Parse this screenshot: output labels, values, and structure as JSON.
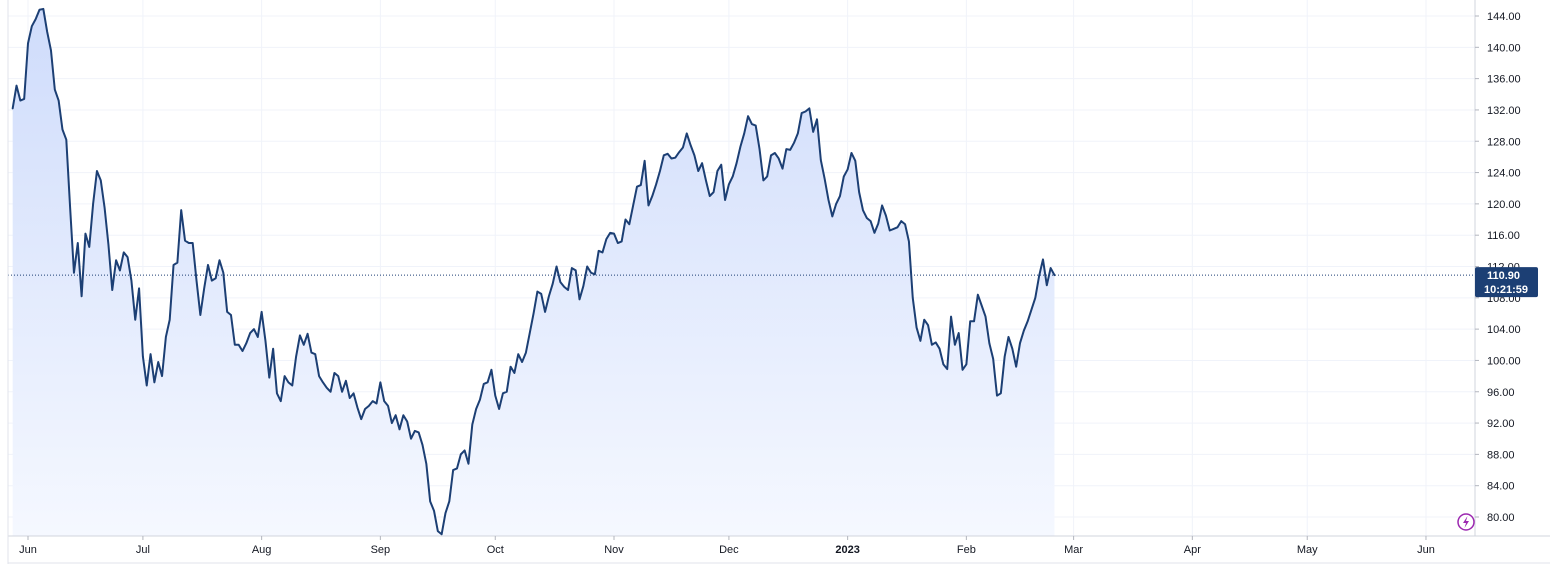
{
  "chart_data": {
    "type": "area",
    "title": "",
    "xlabel": "",
    "ylabel": "",
    "ylim": [
      77,
      146
    ],
    "grid": true,
    "y_ticks": [
      "144.00",
      "140.00",
      "136.00",
      "132.00",
      "128.00",
      "124.00",
      "120.00",
      "116.00",
      "112.00",
      "108.00",
      "104.00",
      "100.00",
      "96.00",
      "92.00",
      "88.00",
      "84.00",
      "80.00"
    ],
    "x_ticks": [
      {
        "label": "Jun",
        "day": 0,
        "bold": false
      },
      {
        "label": "Jul",
        "day": 30,
        "bold": false
      },
      {
        "label": "Aug",
        "day": 61,
        "bold": false
      },
      {
        "label": "Sep",
        "day": 92,
        "bold": false
      },
      {
        "label": "Oct",
        "day": 122,
        "bold": false
      },
      {
        "label": "Nov",
        "day": 153,
        "bold": false
      },
      {
        "label": "Dec",
        "day": 183,
        "bold": false
      },
      {
        "label": "2023",
        "day": 214,
        "bold": true
      },
      {
        "label": "Feb",
        "day": 245,
        "bold": false
      },
      {
        "label": "Mar",
        "day": 273,
        "bold": false
      },
      {
        "label": "Apr",
        "day": 304,
        "bold": false
      },
      {
        "label": "May",
        "day": 334,
        "bold": false
      },
      {
        "label": "Jun",
        "day": 365,
        "bold": false
      }
    ],
    "last_price": {
      "value": 110.9,
      "label": "110.90",
      "time": "10:21:59"
    },
    "colors": {
      "line": "#1c3f74",
      "fill_top": "#cfdcfb",
      "fill_bottom": "#f5f8ff",
      "badge": "#1c3f74",
      "grid": "#f0f3fa",
      "axis_text": "#131722",
      "lightning": "#9c27b0"
    },
    "series": [
      {
        "values": [
          [
            -4,
            132.2
          ],
          [
            -3,
            135.1
          ],
          [
            -2,
            133.2
          ],
          [
            -1,
            133.4
          ],
          [
            0,
            140.5
          ],
          [
            1,
            142.7
          ],
          [
            2,
            143.6
          ],
          [
            3,
            144.8
          ],
          [
            4,
            144.9
          ],
          [
            5,
            142.0
          ],
          [
            6,
            139.6
          ],
          [
            7,
            134.6
          ],
          [
            8,
            133.2
          ],
          [
            9,
            129.5
          ],
          [
            10,
            128.2
          ],
          [
            11,
            119.5
          ],
          [
            12,
            111.2
          ],
          [
            13,
            115.0
          ],
          [
            14,
            108.2
          ],
          [
            15,
            116.2
          ],
          [
            16,
            114.5
          ],
          [
            17,
            120.0
          ],
          [
            18,
            124.2
          ],
          [
            19,
            123.0
          ],
          [
            20,
            119.5
          ],
          [
            21,
            114.8
          ],
          [
            22,
            109.0
          ],
          [
            23,
            112.8
          ],
          [
            24,
            111.5
          ],
          [
            25,
            113.8
          ],
          [
            26,
            113.2
          ],
          [
            27,
            110.2
          ],
          [
            28,
            105.2
          ],
          [
            29,
            109.2
          ],
          [
            30,
            100.5
          ],
          [
            31,
            96.8
          ],
          [
            32,
            100.8
          ],
          [
            33,
            97.2
          ],
          [
            34,
            99.8
          ],
          [
            35,
            98.0
          ],
          [
            36,
            103.0
          ],
          [
            37,
            105.2
          ],
          [
            38,
            112.2
          ],
          [
            39,
            112.5
          ],
          [
            40,
            119.2
          ],
          [
            41,
            115.3
          ],
          [
            42,
            115.0
          ],
          [
            43,
            115.0
          ],
          [
            44,
            110.2
          ],
          [
            45,
            105.8
          ],
          [
            46,
            109.2
          ],
          [
            47,
            112.2
          ],
          [
            48,
            110.2
          ],
          [
            49,
            110.5
          ],
          [
            50,
            112.8
          ],
          [
            51,
            111.2
          ],
          [
            52,
            106.2
          ],
          [
            53,
            105.8
          ],
          [
            54,
            102.0
          ],
          [
            55,
            102.0
          ],
          [
            56,
            101.2
          ],
          [
            57,
            102.2
          ],
          [
            58,
            103.5
          ],
          [
            59,
            104.0
          ],
          [
            60,
            103.0
          ],
          [
            61,
            106.2
          ],
          [
            62,
            102.5
          ],
          [
            63,
            97.8
          ],
          [
            64,
            101.5
          ],
          [
            65,
            95.8
          ],
          [
            66,
            94.8
          ],
          [
            67,
            98.0
          ],
          [
            68,
            97.2
          ],
          [
            69,
            96.8
          ],
          [
            70,
            100.5
          ],
          [
            71,
            103.2
          ],
          [
            72,
            102.0
          ],
          [
            73,
            103.4
          ],
          [
            74,
            101.0
          ],
          [
            75,
            100.8
          ],
          [
            76,
            98.0
          ],
          [
            77,
            97.2
          ],
          [
            78,
            96.5
          ],
          [
            79,
            96.0
          ],
          [
            80,
            98.4
          ],
          [
            81,
            98.0
          ],
          [
            82,
            96.0
          ],
          [
            83,
            97.4
          ],
          [
            84,
            95.2
          ],
          [
            85,
            95.8
          ],
          [
            86,
            94.0
          ],
          [
            87,
            92.5
          ],
          [
            88,
            93.8
          ],
          [
            89,
            94.2
          ],
          [
            90,
            94.8
          ],
          [
            91,
            94.5
          ],
          [
            92,
            97.2
          ],
          [
            93,
            94.8
          ],
          [
            94,
            94.2
          ],
          [
            95,
            92.0
          ],
          [
            96,
            93.0
          ],
          [
            97,
            91.2
          ],
          [
            98,
            93.0
          ],
          [
            99,
            92.2
          ],
          [
            100,
            90.0
          ],
          [
            101,
            91.0
          ],
          [
            102,
            90.8
          ],
          [
            103,
            89.2
          ],
          [
            104,
            86.8
          ],
          [
            105,
            82.0
          ],
          [
            106,
            80.8
          ],
          [
            107,
            78.2
          ],
          [
            108,
            77.8
          ],
          [
            109,
            80.5
          ],
          [
            110,
            82.0
          ],
          [
            111,
            86.0
          ],
          [
            112,
            86.2
          ],
          [
            113,
            88.0
          ],
          [
            114,
            88.5
          ],
          [
            115,
            86.8
          ],
          [
            116,
            91.8
          ],
          [
            117,
            93.8
          ],
          [
            118,
            95.0
          ],
          [
            119,
            97.0
          ],
          [
            120,
            97.2
          ],
          [
            121,
            98.8
          ],
          [
            122,
            95.5
          ],
          [
            123,
            93.8
          ],
          [
            124,
            95.8
          ],
          [
            125,
            96.0
          ],
          [
            126,
            99.2
          ],
          [
            127,
            98.4
          ],
          [
            128,
            100.8
          ],
          [
            129,
            99.8
          ],
          [
            130,
            101.0
          ],
          [
            131,
            103.5
          ],
          [
            132,
            106.0
          ],
          [
            133,
            108.8
          ],
          [
            134,
            108.5
          ],
          [
            135,
            106.2
          ],
          [
            136,
            108.2
          ],
          [
            137,
            109.8
          ],
          [
            138,
            112.0
          ],
          [
            139,
            110.0
          ],
          [
            140,
            109.4
          ],
          [
            141,
            109.0
          ],
          [
            142,
            111.8
          ],
          [
            143,
            111.5
          ],
          [
            144,
            107.8
          ],
          [
            145,
            109.5
          ],
          [
            146,
            112.0
          ],
          [
            147,
            111.2
          ],
          [
            148,
            111.0
          ],
          [
            149,
            114.0
          ],
          [
            150,
            113.8
          ],
          [
            151,
            115.5
          ],
          [
            152,
            116.3
          ],
          [
            153,
            116.2
          ],
          [
            154,
            115.0
          ],
          [
            155,
            115.2
          ],
          [
            156,
            118.0
          ],
          [
            157,
            117.4
          ],
          [
            158,
            119.8
          ],
          [
            159,
            122.2
          ],
          [
            160,
            122.4
          ],
          [
            161,
            125.5
          ],
          [
            162,
            119.8
          ],
          [
            163,
            121.0
          ],
          [
            164,
            122.5
          ],
          [
            165,
            124.2
          ],
          [
            166,
            126.2
          ],
          [
            167,
            126.4
          ],
          [
            168,
            125.8
          ],
          [
            169,
            125.9
          ],
          [
            170,
            126.6
          ],
          [
            171,
            127.2
          ],
          [
            172,
            129.0
          ],
          [
            173,
            127.5
          ],
          [
            174,
            126.2
          ],
          [
            175,
            124.2
          ],
          [
            176,
            125.2
          ],
          [
            177,
            123.0
          ],
          [
            178,
            121.0
          ],
          [
            179,
            121.5
          ],
          [
            180,
            124.2
          ],
          [
            181,
            125.0
          ],
          [
            182,
            120.5
          ],
          [
            183,
            122.5
          ],
          [
            184,
            123.5
          ],
          [
            185,
            125.2
          ],
          [
            186,
            127.3
          ],
          [
            187,
            129.0
          ],
          [
            188,
            131.2
          ],
          [
            189,
            130.2
          ],
          [
            190,
            130.0
          ],
          [
            191,
            127.0
          ],
          [
            192,
            123.0
          ],
          [
            193,
            123.5
          ],
          [
            194,
            126.2
          ],
          [
            195,
            126.5
          ],
          [
            196,
            125.8
          ],
          [
            197,
            124.5
          ],
          [
            198,
            127.0
          ],
          [
            199,
            126.9
          ],
          [
            200,
            127.8
          ],
          [
            201,
            129.0
          ],
          [
            202,
            131.6
          ],
          [
            203,
            131.8
          ],
          [
            204,
            132.2
          ],
          [
            205,
            129.2
          ],
          [
            206,
            130.8
          ],
          [
            207,
            125.6
          ],
          [
            208,
            123.2
          ],
          [
            209,
            120.5
          ],
          [
            210,
            118.4
          ],
          [
            211,
            120.0
          ],
          [
            212,
            121.0
          ],
          [
            213,
            123.5
          ],
          [
            214,
            124.4
          ],
          [
            215,
            126.5
          ],
          [
            216,
            125.5
          ],
          [
            217,
            121.5
          ],
          [
            218,
            119.2
          ],
          [
            219,
            118.2
          ],
          [
            220,
            117.8
          ],
          [
            221,
            116.3
          ],
          [
            222,
            117.5
          ],
          [
            223,
            119.8
          ],
          [
            224,
            118.5
          ],
          [
            225,
            116.6
          ],
          [
            226,
            116.8
          ],
          [
            227,
            117.0
          ],
          [
            228,
            117.8
          ],
          [
            229,
            117.4
          ],
          [
            230,
            115.2
          ],
          [
            231,
            108.0
          ],
          [
            232,
            104.2
          ],
          [
            233,
            102.5
          ],
          [
            234,
            105.2
          ],
          [
            235,
            104.5
          ],
          [
            236,
            102.0
          ],
          [
            237,
            102.3
          ],
          [
            238,
            101.5
          ],
          [
            239,
            99.5
          ],
          [
            240,
            98.9
          ],
          [
            241,
            105.6
          ],
          [
            242,
            102.0
          ],
          [
            243,
            103.5
          ],
          [
            244,
            98.8
          ],
          [
            245,
            99.5
          ],
          [
            246,
            105.0
          ],
          [
            247,
            105.0
          ],
          [
            248,
            108.4
          ],
          [
            249,
            107.0
          ],
          [
            250,
            105.6
          ],
          [
            251,
            102.2
          ],
          [
            252,
            100.2
          ],
          [
            253,
            95.5
          ],
          [
            254,
            95.8
          ],
          [
            255,
            100.5
          ],
          [
            256,
            103.0
          ],
          [
            257,
            101.5
          ],
          [
            258,
            99.2
          ],
          [
            259,
            102.2
          ],
          [
            260,
            103.8
          ],
          [
            261,
            105.0
          ],
          [
            262,
            106.5
          ],
          [
            263,
            108.0
          ],
          [
            264,
            110.8
          ],
          [
            265,
            112.9
          ],
          [
            266,
            109.6
          ],
          [
            267,
            111.8
          ],
          [
            268,
            110.9
          ]
        ]
      }
    ]
  }
}
